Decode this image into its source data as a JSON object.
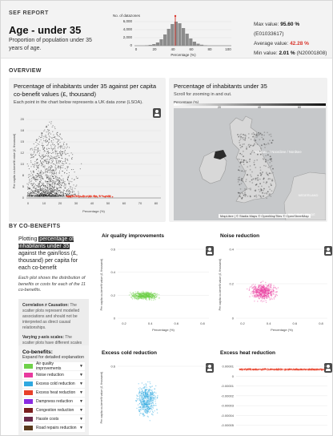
{
  "header": {
    "section_label": "SEF REPORT",
    "title": "Age - under 35",
    "subtitle": "Proportion of population under 35 years of age.",
    "histogram": {
      "ylabel": "No. of datazones",
      "xlabel": "Percentage (%)",
      "y_ticks": [
        "6,000",
        "4,000",
        "2,000",
        "0"
      ],
      "x_ticks": [
        "0",
        "20",
        "40",
        "60",
        "80",
        "100"
      ]
    },
    "stats": {
      "max_label": "Max value:",
      "max_value": "95.60 %",
      "max_id": "(E01033617)",
      "avg_label": "Average value:",
      "avg_value": "42.28 %",
      "min_label": "Min value:",
      "min_value": "2.01 %",
      "min_id": "(N20001808)"
    }
  },
  "overview": {
    "section_label": "OVERVIEW",
    "scatter_card": {
      "title": "Percentage of inhabitants under 35 against per capita co-benefit values (£, thousand)",
      "subtitle": "Each point in the chart below represents a UK data zone (LSOA).",
      "ylabel": "Per capita co-benefit value (£, thousand)",
      "xlabel": "Percentage (%)"
    },
    "map_card": {
      "title": "Percentage of inhabitants under 35",
      "subtitle": "Scroll for zooming in and out.",
      "legend_label": "Percentage (%)",
      "legend_ticks": [
        "20",
        "40",
        "60"
      ],
      "attribution": "MapLibre | © Stadia Maps © OpenMapTiles © OpenStreetMap",
      "place_labels": [
        "Nordsøen / Noordzee / Nordsee",
        "NEDERLAND",
        "BELGIQUE / BELGIË"
      ]
    }
  },
  "cobenefits": {
    "section_label": "BY CO-BENEFITS",
    "intro_parts": [
      "Plotting ",
      "percentage of inhabitants under 35",
      " against the gain/loss (£, thousand) per capita for each co-benefit"
    ],
    "intro2": "Each plot shows the distribution of benefits or costs for each of the 11 co-benefits.",
    "note1_title": "Correlation ≠ Causation:",
    "note1_text": " The scatter plots represent modelled associations and should not be interpreted as direct causal relationships.",
    "note2_title": "Varying y-axis scales:",
    "note2_text": " The scatter plots have different scales on the y-axis due to the nature of each co-benefit.",
    "list_title": "Co-benefits:",
    "list_sub": "Expand for detailed explanation",
    "items": [
      {
        "label": "Air quality improvements",
        "color": "#6fd14a"
      },
      {
        "label": "Noise reduction",
        "color": "#e8399e"
      },
      {
        "label": "Excess cold reduction",
        "color": "#2fa8e0"
      },
      {
        "label": "Excess heat reduction",
        "color": "#e8402a"
      },
      {
        "label": "Dampness reduction",
        "color": "#8a2be2"
      },
      {
        "label": "Congestion reduction",
        "color": "#7a1f1f"
      },
      {
        "label": "Hassle costs",
        "color": "#6b2a4a"
      },
      {
        "label": "Road repairs reduction",
        "color": "#5a3b1c"
      }
    ],
    "plots": [
      {
        "title": "Air quality improvements",
        "color": "#6fd14a",
        "ylabel": "Per capita co-benefit value (£, thousand)",
        "xlabel": "Percentage (%)",
        "y_ticks": [
          "0.6",
          "0.4",
          "0.2",
          "0"
        ],
        "x_ticks": [
          "0.2",
          "0.4",
          "0.6",
          "0.8"
        ]
      },
      {
        "title": "Noise reduction",
        "color": "#e8399e",
        "ylabel": "Per capita co-benefit value (£, thousand)",
        "xlabel": "Percentage (%)",
        "y_ticks": [
          "0.4",
          "0.2",
          "0"
        ],
        "x_ticks": [
          "0.2",
          "0.4",
          "0.6",
          "0.8"
        ]
      },
      {
        "title": "Excess cold reduction",
        "color": "#2fa8e0",
        "ylabel": "Per capita co-benefit value (£, thousand)",
        "xlabel": "",
        "y_ticks": [
          "0.6",
          "0.4"
        ],
        "x_ticks": []
      },
      {
        "title": "Excess heat reduction",
        "color": "#e8402a",
        "ylabel": "",
        "xlabel": "",
        "y_ticks": [
          "0.00001",
          "0",
          "-0.00001",
          "-0.00002",
          "-0.00003",
          "-0.00004",
          "-0.00005",
          "-0.00006"
        ],
        "x_ticks": []
      }
    ]
  }
}
